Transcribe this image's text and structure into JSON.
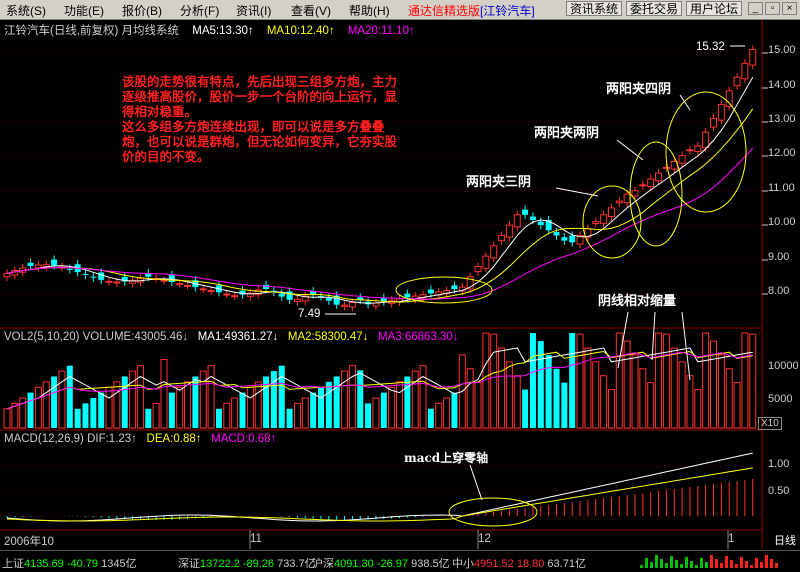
{
  "menu": {
    "items": [
      "系统(S)",
      "功能(E)",
      "报价(B)",
      "分析(F)",
      "资讯(I)",
      "查看(V)",
      "帮助(H)"
    ],
    "brand": "通达信精选版",
    "stock_tag": "[江铃汽车]",
    "buttons": [
      "资讯系统",
      "委托交易",
      "用户论坛"
    ]
  },
  "price_panel": {
    "title": "江铃汽车(日线,前复权) 月均线系统",
    "ma5": "MA5:13.30↑",
    "ma10": "MA10:12.40↑",
    "ma20": "MA20:11.10↑",
    "high_label": "15.32",
    "low_label": "7.49",
    "y_ticks": [
      "15.00",
      "14.00",
      "13.00",
      "12.00",
      "11.00",
      "10.00",
      "9.00",
      "8.00"
    ]
  },
  "annotation_main": "该股的走势很有特点，先后出现三组多方炮，主力逐级推高股价，股价一步一个台阶的向上运行，显得相对稳重。\n这么多组多方炮连续出现，即可以说是多方叠叠炮，也可以说是群炮，但无论如何变异，它夯实股价的目的不变。",
  "callouts": {
    "three": "两阳夹三阴",
    "two": "两阳夹两阴",
    "four": "两阳夹四阴",
    "vol": "阴线相对缩量",
    "macd": "macd上穿零轴"
  },
  "volume_panel": {
    "title": "VOL2(5,10,20) VOLUME:43005.46↓",
    "ma1": "MA1:49361.27↓",
    "ma2": "MA2:58300.47↓",
    "ma3": "MA3:66863.30↓",
    "y_ticks": [
      "10000",
      "5000"
    ],
    "unit": "X10"
  },
  "macd_panel": {
    "title": "MACD(12,26,9) DIF:1.23↑",
    "dea": "DEA:0.88↑",
    "macd": "MACD:0.68↑",
    "y_ticks": [
      "1.00",
      "0.50"
    ]
  },
  "x_axis": {
    "labels": [
      "2006年10",
      "11",
      "12",
      "1"
    ]
  },
  "period": "日线",
  "statusbar": {
    "sh_label": "上证",
    "sh_value": "4135.69",
    "sh_change": "-40.79",
    "sh_amount": "1345亿",
    "sz_label": "深证",
    "sz_value": "13722.2",
    "sz_change": "-89.26",
    "sz_amount": "733.7亿",
    "hs_label": "沪深",
    "hs_value": "4091.30",
    "hs_change": "-26.97",
    "hs_amount": "938.5亿",
    "zx_label": "中小",
    "zx_value": "4951.52",
    "zx_change": "18.80",
    "zx_amount": "63.71亿"
  },
  "colors": {
    "up": "#ff3232",
    "down": "#00ffff",
    "ma5": "#ffffff",
    "ma10": "#ffff00",
    "ma20": "#ff00ff",
    "grid": "#8b0000"
  }
}
